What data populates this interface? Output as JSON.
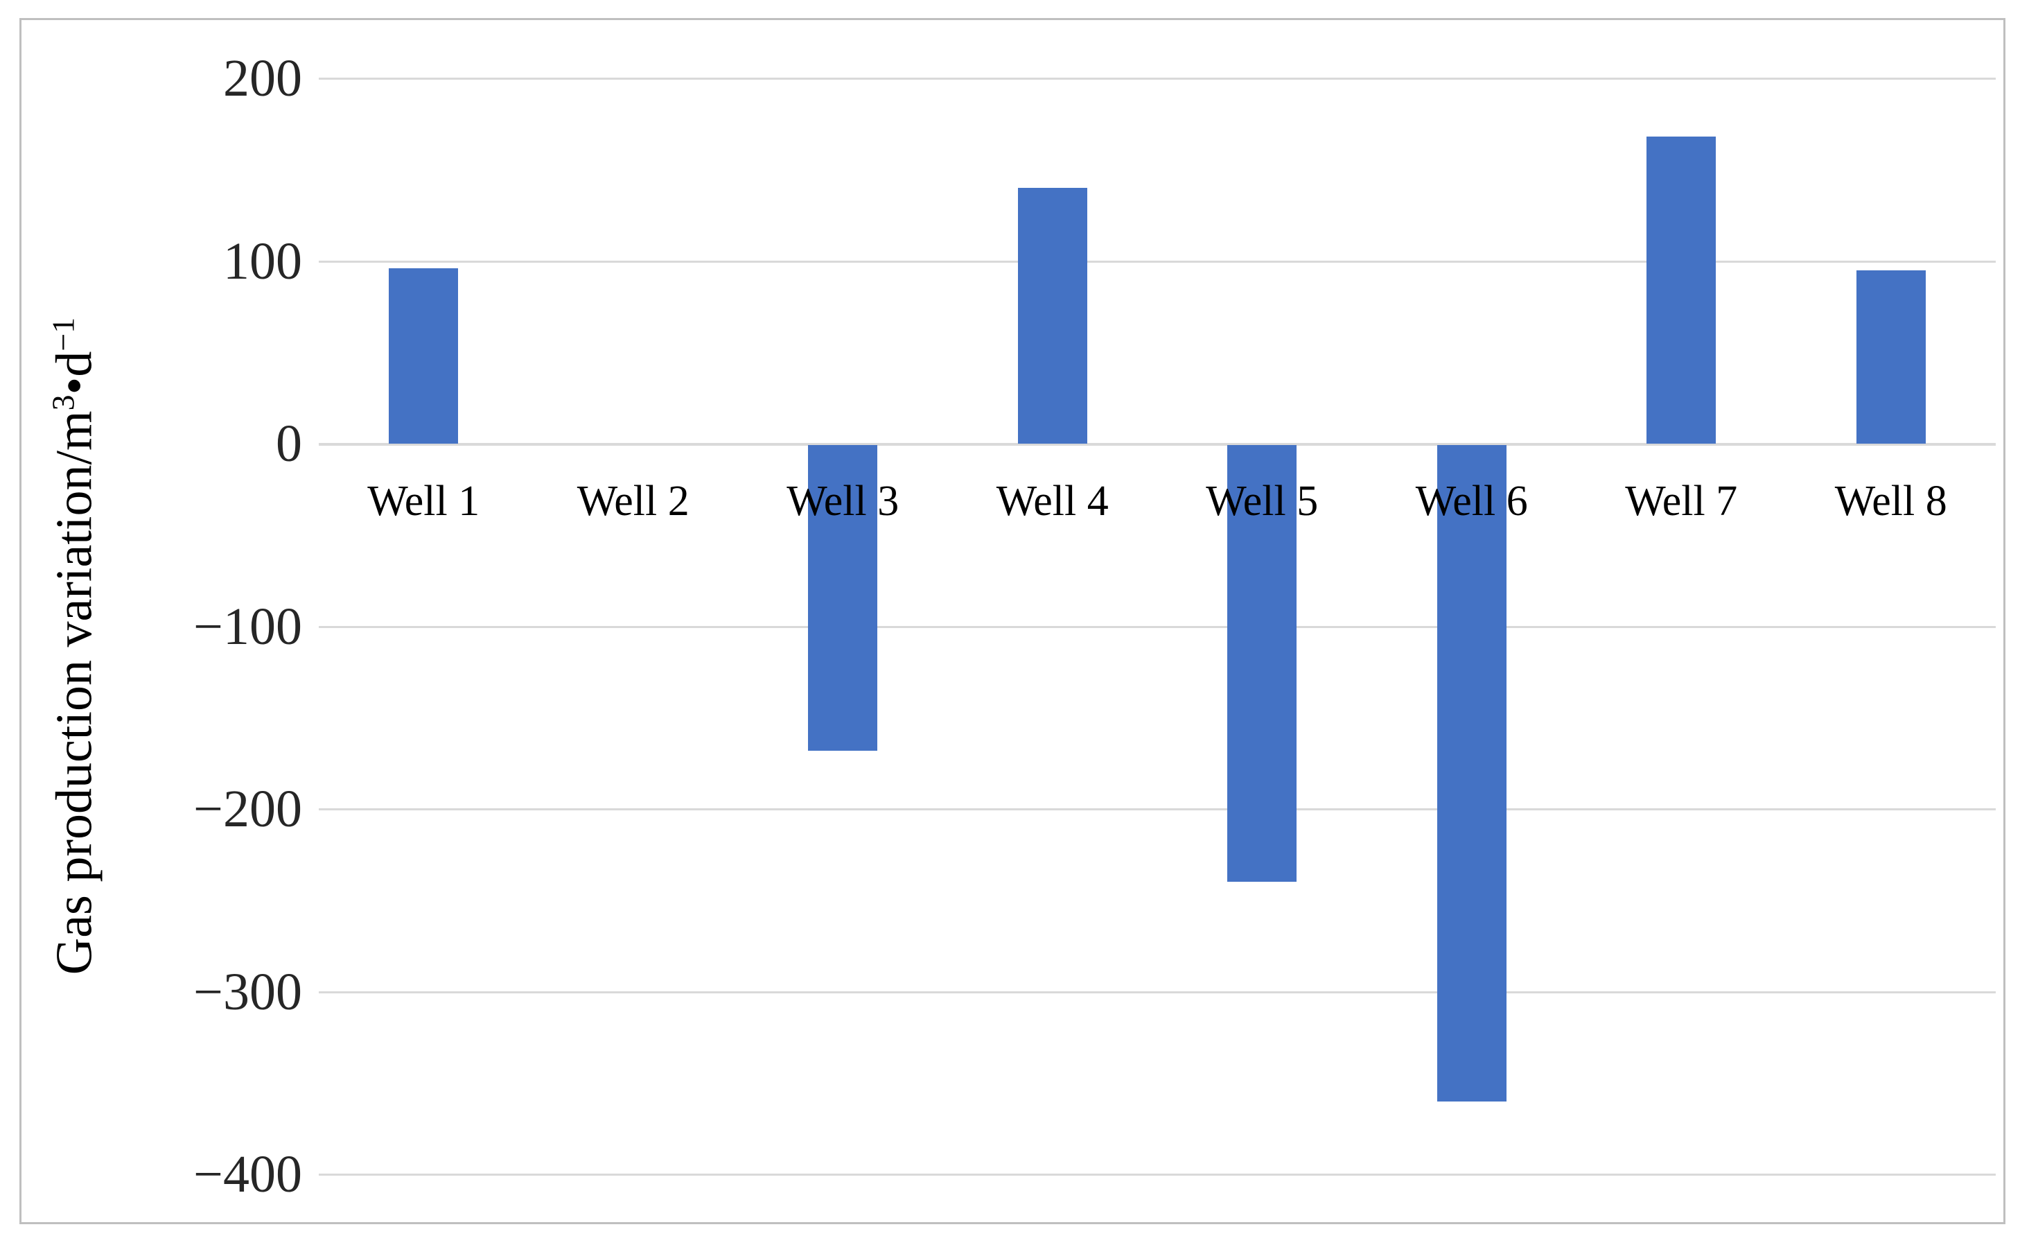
{
  "chart_data": {
    "type": "bar",
    "title": "",
    "xlabel": "",
    "ylabel": "Gas production variation/m3•d−1",
    "ylabel_parts": {
      "prefix": "Gas production variation/m",
      "sup1": "3",
      "mid": "•d",
      "sup2": "−1"
    },
    "categories": [
      "Well 1",
      "Well 2",
      "Well 3",
      "Well 4",
      "Well 5",
      "Well 6",
      "Well 7",
      "Well 8"
    ],
    "values": [
      96,
      0,
      -168,
      140,
      -240,
      -360,
      168,
      95
    ],
    "ylim": [
      -400,
      200
    ],
    "ytick_interval": 100,
    "yticks": [
      200,
      100,
      0,
      -100,
      -200,
      -300,
      -400
    ],
    "ytick_labels": [
      "200",
      "100",
      "0",
      "−100",
      "−200",
      "−300",
      "−400"
    ],
    "grid": true,
    "legend": "none",
    "bar_color": "#4472C4",
    "gridline_color": "#D9D9D9",
    "border_color": "#BFBFBF",
    "text_color": "#262626"
  }
}
